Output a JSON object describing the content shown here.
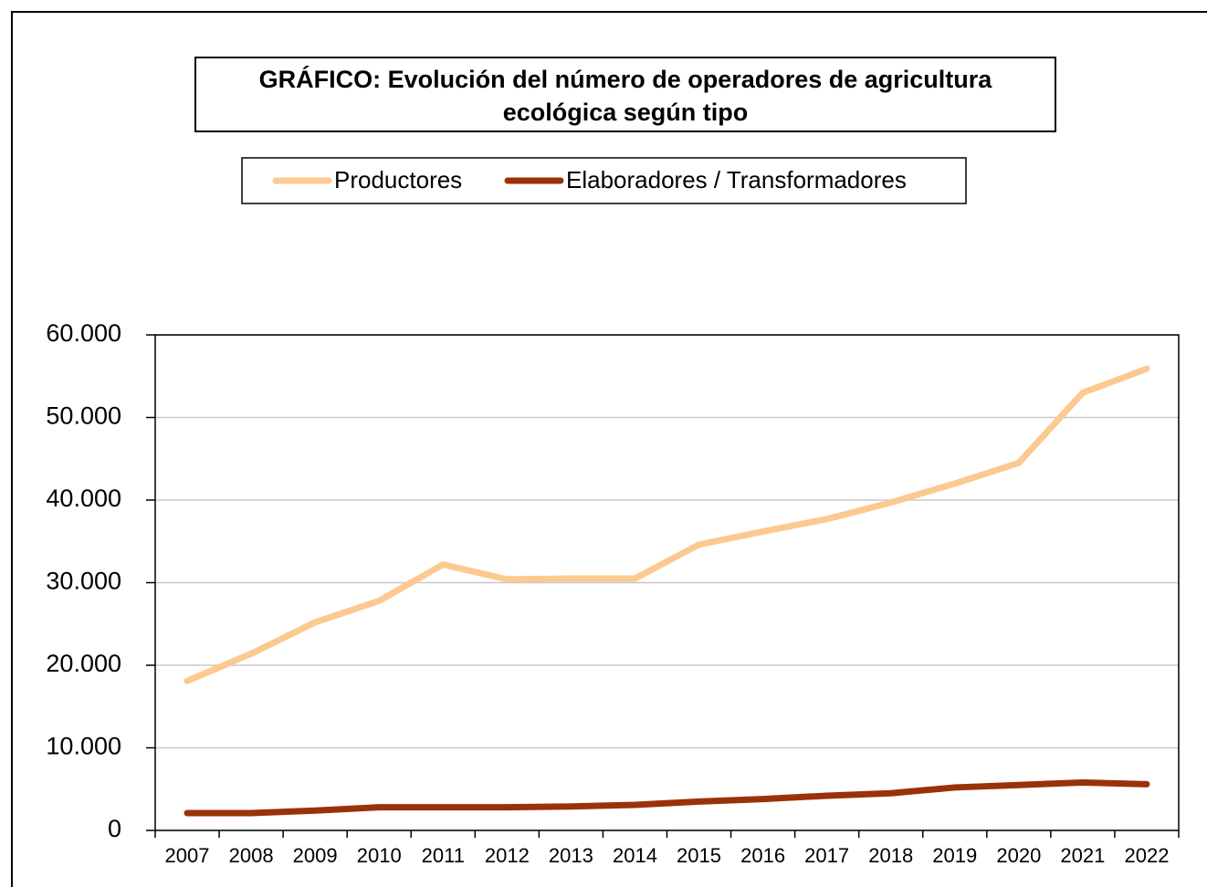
{
  "chart_data": {
    "type": "line",
    "title": "GRÁFICO: Evolución del número de operadores de agricultura ecológica según tipo",
    "categories": [
      "2007",
      "2008",
      "2009",
      "2010",
      "2011",
      "2012",
      "2013",
      "2014",
      "2015",
      "2016",
      "2017",
      "2018",
      "2019",
      "2020",
      "2021",
      "2022"
    ],
    "series": [
      {
        "name": "Productores",
        "color": "#fcc990",
        "values": [
          18100,
          21400,
          25200,
          27800,
          32200,
          30400,
          30500,
          30500,
          34600,
          36200,
          37700,
          39700,
          42000,
          44500,
          53000,
          55900
        ]
      },
      {
        "name": "Elaboradores / Transformadores",
        "color": "#9a3208",
        "values": [
          2100,
          2100,
          2400,
          2800,
          2800,
          2800,
          2900,
          3100,
          3500,
          3800,
          4200,
          4500,
          5200,
          5500,
          5800,
          5600
        ]
      }
    ],
    "ylim": [
      0,
      60000
    ],
    "yticks": [
      0,
      {
        "value": 10000,
        "label": "10.000"
      },
      {
        "value": 20000,
        "label": "20.000"
      },
      {
        "value": 30000,
        "label": "30.000"
      },
      {
        "value": 40000,
        "label": "40.000"
      },
      {
        "value": 50000,
        "label": "50.000"
      },
      {
        "value": 60000,
        "label": "60.000"
      }
    ],
    "grid": true
  }
}
